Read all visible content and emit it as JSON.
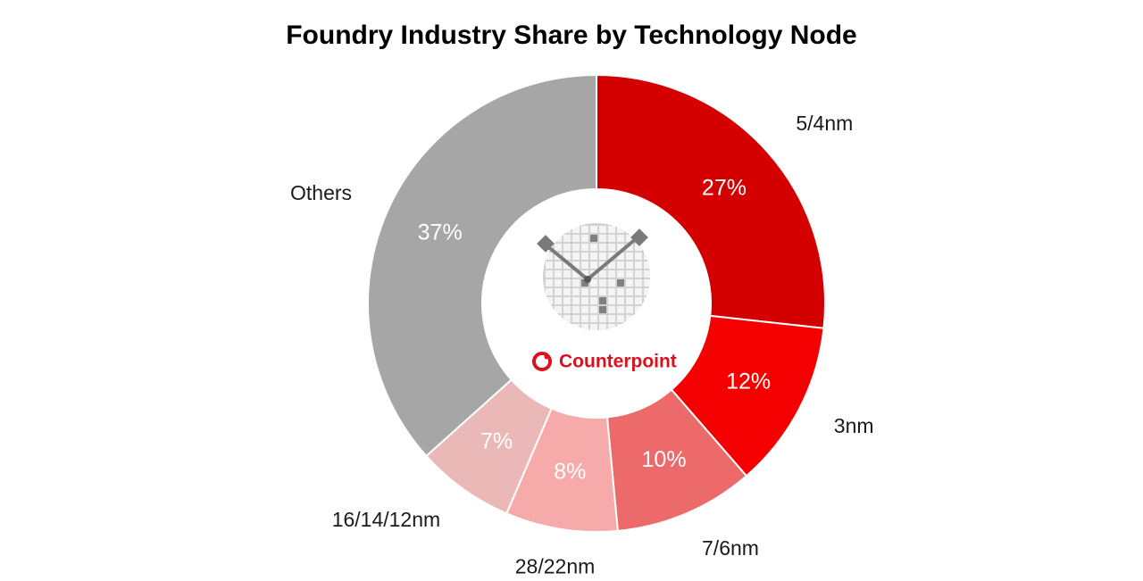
{
  "chart_data": {
    "type": "donut",
    "title": "Foundry Industry Share by Technology Node",
    "categories": [
      "5/4nm",
      "3nm",
      "7/6nm",
      "28/22nm",
      "16/14/12nm",
      "Others"
    ],
    "values": [
      27,
      12,
      10,
      8,
      7,
      37
    ],
    "value_labels": [
      "27%",
      "12%",
      "10%",
      "8%",
      "7%",
      "37%"
    ],
    "colors": [
      "#d40000",
      "#f50000",
      "#ec6a6a",
      "#f7aaaa",
      "#ebb8b8",
      "#a6a6a6"
    ],
    "brand": "Counterpoint"
  }
}
